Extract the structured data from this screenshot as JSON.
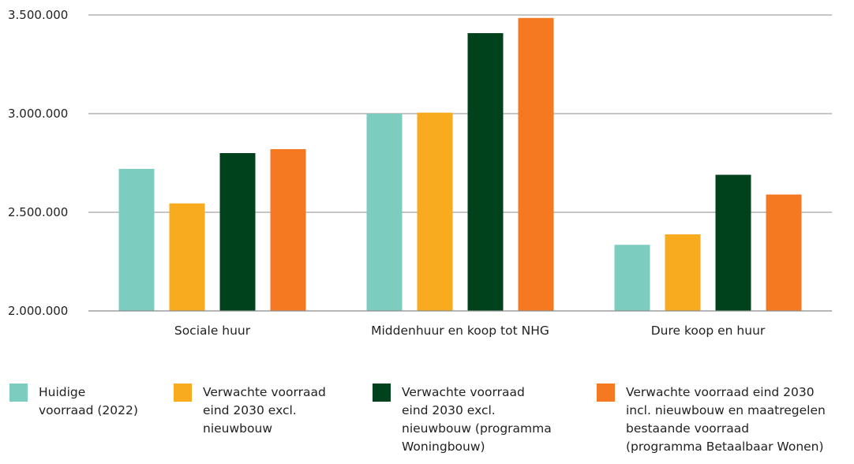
{
  "chart_data": {
    "type": "bar",
    "title": "",
    "xlabel": "",
    "ylabel": "",
    "categories": [
      "Sociale huur",
      "Middenhuur en koop tot NHG",
      "Dure koop en huur"
    ],
    "ylim": [
      2000000,
      3500000
    ],
    "yticks": [
      2000000,
      2500000,
      3000000,
      3500000
    ],
    "ytick_labels": [
      "2.000.000",
      "2.500.000",
      "3.000.000",
      "3.500.000"
    ],
    "grid": true,
    "legend_position": "bottom",
    "series": [
      {
        "name": "Huidige voorraad (2022)",
        "color": "#7ccdc0",
        "values": [
          2720000,
          3000000,
          2335000
        ]
      },
      {
        "name": "Verwachte voorraad eind 2030 excl. nieuwbouw",
        "color": "#f9ab1f",
        "values": [
          2545000,
          3005000,
          2388000
        ]
      },
      {
        "name": "Verwachte voorraad eind 2030 excl. nieuwbouw (programma Woningbouw)",
        "color": "#00421c",
        "values": [
          2800000,
          3408000,
          2690000
        ]
      },
      {
        "name": "Verwachte voorraad eind 2030 incl. nieuwbouw en maatregelen bestaande voorraad (programma Betaalbaar Wonen)",
        "color": "#f47920",
        "values": [
          2820000,
          3485000,
          2590000
        ]
      }
    ]
  },
  "legend": {
    "items": [
      {
        "lines": [
          "Huidige",
          "voorraad (2022)"
        ],
        "color": "#7ccdc0"
      },
      {
        "lines": [
          "Verwachte voorraad",
          "eind 2030 excl.",
          "nieuwbouw"
        ],
        "color": "#f9ab1f"
      },
      {
        "lines": [
          "Verwachte voorraad",
          "eind 2030 excl.",
          "nieuwbouw (programma",
          "Woningbouw)"
        ],
        "color": "#00421c"
      },
      {
        "lines": [
          "Verwachte voorraad eind 2030",
          "incl. nieuwbouw en maatregelen",
          "bestaande voorraad",
          "(programma Betaalbaar Wonen)"
        ],
        "color": "#f47920"
      }
    ]
  }
}
